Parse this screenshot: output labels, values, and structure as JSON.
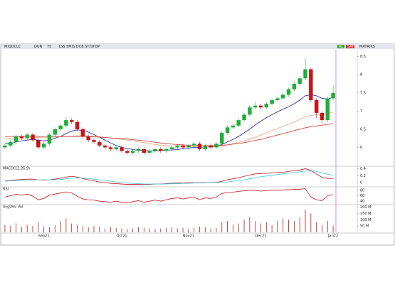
{
  "toolbar": {
    "symbol": "MIQDCLC",
    "period": "DUN",
    "zoom": "75",
    "tools": "1SS 5MIS DCB ST/STOP",
    "right1": "AL",
    "right2": "SAT",
    "right3": "MATRIKS"
  },
  "chart_data": [
    {
      "type": "candlestick",
      "categories": [
        null,
        null,
        null,
        null,
        null,
        null,
        null,
        "Sep21",
        null,
        null,
        null,
        null,
        null,
        null,
        null,
        null,
        null,
        null,
        null,
        null,
        null,
        "Oct21",
        null,
        null,
        null,
        null,
        null,
        null,
        null,
        null,
        null,
        null,
        null,
        "Nov21",
        null,
        null,
        null,
        null,
        null,
        null,
        null,
        null,
        null,
        null,
        null,
        null,
        "Dec21",
        null,
        null,
        null,
        null,
        null,
        null,
        null,
        null,
        null,
        null,
        null,
        null,
        "Jan22"
      ],
      "open": [
        6.0,
        6.05,
        6.15,
        6.3,
        6.25,
        6.35,
        6.2,
        6.0,
        6.1,
        6.35,
        6.5,
        6.6,
        6.75,
        6.7,
        6.5,
        6.3,
        6.2,
        6.15,
        6.05,
        6.0,
        5.95,
        6.0,
        5.9,
        5.85,
        5.9,
        5.95,
        5.85,
        5.9,
        5.95,
        5.9,
        5.95,
        6.0,
        6.05,
        6.0,
        6.05,
        6.1,
        5.95,
        6.05,
        6.0,
        6.1,
        6.4,
        6.55,
        6.6,
        6.75,
        6.9,
        7.1,
        7.15,
        7.1,
        7.2,
        7.3,
        7.35,
        7.45,
        7.6,
        7.75,
        7.9,
        8.15,
        7.3,
        6.95,
        6.75,
        7.35
      ],
      "high": [
        6.1,
        6.2,
        6.35,
        6.35,
        6.4,
        6.4,
        6.25,
        6.15,
        6.4,
        6.55,
        6.65,
        6.85,
        6.8,
        6.75,
        6.55,
        6.35,
        6.25,
        6.2,
        6.1,
        6.05,
        6.05,
        6.05,
        5.95,
        5.95,
        6.0,
        6.0,
        5.95,
        6.0,
        6.0,
        6.0,
        6.05,
        6.1,
        6.1,
        6.1,
        6.15,
        6.15,
        6.1,
        6.1,
        6.15,
        6.45,
        6.6,
        6.65,
        6.8,
        6.95,
        7.15,
        7.25,
        7.2,
        7.25,
        7.35,
        7.4,
        7.5,
        7.65,
        7.8,
        7.95,
        8.45,
        8.2,
        7.35,
        7.0,
        7.4,
        7.7
      ],
      "low": [
        5.95,
        6.0,
        6.1,
        6.2,
        6.2,
        6.15,
        5.95,
        5.95,
        6.05,
        6.3,
        6.45,
        6.55,
        6.65,
        6.45,
        6.25,
        6.15,
        6.1,
        6.0,
        5.95,
        5.9,
        5.9,
        5.85,
        5.8,
        5.8,
        5.85,
        5.8,
        5.8,
        5.85,
        5.85,
        5.85,
        5.9,
        5.95,
        5.95,
        5.95,
        6.0,
        5.9,
        5.9,
        5.95,
        5.95,
        6.05,
        6.35,
        6.5,
        6.55,
        6.7,
        6.85,
        7.05,
        7.05,
        7.05,
        7.15,
        7.25,
        7.3,
        7.4,
        7.55,
        7.7,
        7.85,
        7.25,
        6.8,
        6.65,
        6.7,
        7.3
      ],
      "close": [
        6.05,
        6.15,
        6.3,
        6.25,
        6.35,
        6.2,
        6.0,
        6.1,
        6.35,
        6.5,
        6.6,
        6.75,
        6.7,
        6.5,
        6.3,
        6.2,
        6.15,
        6.05,
        6.0,
        5.95,
        6.0,
        5.9,
        5.85,
        5.9,
        5.95,
        5.85,
        5.9,
        5.95,
        5.9,
        5.95,
        6.0,
        6.05,
        6.0,
        6.05,
        6.1,
        5.95,
        6.05,
        6.0,
        6.1,
        6.4,
        6.55,
        6.6,
        6.75,
        6.9,
        7.1,
        7.15,
        7.1,
        7.2,
        7.3,
        7.35,
        7.45,
        7.6,
        7.75,
        7.9,
        8.15,
        7.3,
        6.95,
        6.75,
        7.35,
        7.5
      ],
      "up_color": "#1fae3a",
      "down_color": "#c8141b",
      "series": [
        {
          "color": "#1a1aa6",
          "values": [
            6.1,
            6.1,
            6.15,
            6.18,
            6.2,
            6.22,
            6.2,
            6.18,
            6.2,
            6.25,
            6.3,
            6.38,
            6.45,
            6.48,
            6.47,
            6.42,
            6.35,
            6.28,
            6.2,
            6.12,
            6.05,
            6.0,
            5.97,
            5.94,
            5.92,
            5.91,
            5.9,
            5.9,
            5.91,
            5.92,
            5.93,
            5.94,
            5.96,
            5.98,
            6.0,
            6.0,
            6.01,
            6.02,
            6.03,
            6.08,
            6.15,
            6.22,
            6.3,
            6.4,
            6.5,
            6.62,
            6.72,
            6.82,
            6.9,
            6.98,
            7.05,
            7.12,
            7.2,
            7.3,
            7.42,
            7.45,
            7.42,
            7.35,
            7.33,
            7.38
          ]
        },
        {
          "color": "#f0a080",
          "values": [
            6.25,
            6.25,
            6.26,
            6.26,
            6.27,
            6.27,
            6.27,
            6.27,
            6.28,
            6.28,
            6.29,
            6.3,
            6.31,
            6.32,
            6.32,
            6.32,
            6.31,
            6.3,
            6.28,
            6.26,
            6.24,
            6.22,
            6.2,
            6.18,
            6.15,
            6.13,
            6.1,
            6.08,
            6.06,
            6.05,
            6.04,
            6.03,
            6.02,
            6.02,
            6.02,
            6.01,
            6.01,
            6.01,
            6.02,
            6.04,
            6.06,
            6.1,
            6.14,
            6.18,
            6.23,
            6.28,
            6.34,
            6.4,
            6.46,
            6.52,
            6.58,
            6.64,
            6.7,
            6.77,
            6.84,
            6.88,
            6.9,
            6.91,
            6.93,
            6.97
          ]
        },
        {
          "color": "#c0392b",
          "values": [
            6.3,
            6.3,
            6.3,
            6.3,
            6.3,
            6.3,
            6.3,
            6.3,
            6.3,
            6.3,
            6.3,
            6.3,
            6.3,
            6.3,
            6.3,
            6.3,
            6.29,
            6.28,
            6.27,
            6.26,
            6.25,
            6.24,
            6.23,
            6.21,
            6.2,
            6.18,
            6.16,
            6.14,
            6.12,
            6.1,
            6.09,
            6.08,
            6.07,
            6.06,
            6.06,
            6.05,
            6.05,
            6.05,
            6.05,
            6.06,
            6.07,
            6.09,
            6.11,
            6.13,
            6.16,
            6.19,
            6.22,
            6.26,
            6.3,
            6.34,
            6.38,
            6.42,
            6.46,
            6.5,
            6.54,
            6.57,
            6.59,
            6.61,
            6.63,
            6.66
          ]
        }
      ],
      "ylim": [
        5.5,
        8.65
      ],
      "yticks": [
        6,
        6.5,
        7,
        7.5,
        8,
        8.5
      ]
    },
    {
      "type": "line",
      "title": "MACD(12,26,9)",
      "series": [
        {
          "color": "#c8141b",
          "values": [
            0.05,
            0.06,
            0.08,
            0.09,
            0.1,
            0.1,
            0.08,
            0.07,
            0.08,
            0.1,
            0.13,
            0.16,
            0.18,
            0.16,
            0.12,
            0.08,
            0.05,
            0.02,
            0,
            -0.02,
            -0.03,
            -0.04,
            -0.05,
            -0.05,
            -0.05,
            -0.05,
            -0.05,
            -0.04,
            -0.04,
            -0.03,
            -0.02,
            -0.01,
            -0.01,
            0,
            0,
            0,
            0,
            0,
            0.01,
            0.04,
            0.08,
            0.11,
            0.14,
            0.18,
            0.22,
            0.25,
            0.26,
            0.27,
            0.28,
            0.29,
            0.3,
            0.32,
            0.34,
            0.36,
            0.4,
            0.35,
            0.25,
            0.15,
            0.12,
            0.12
          ]
        },
        {
          "color": "#3cc8d8",
          "values": [
            0.04,
            0.05,
            0.05,
            0.06,
            0.07,
            0.08,
            0.08,
            0.08,
            0.08,
            0.08,
            0.09,
            0.11,
            0.13,
            0.14,
            0.13,
            0.12,
            0.1,
            0.08,
            0.06,
            0.04,
            0.02,
            0,
            -0.01,
            -0.02,
            -0.03,
            -0.04,
            -0.04,
            -0.04,
            -0.04,
            -0.04,
            -0.03,
            -0.03,
            -0.02,
            -0.02,
            -0.01,
            -0.01,
            -0.01,
            0,
            0,
            0.01,
            0.02,
            0.04,
            0.06,
            0.08,
            0.11,
            0.14,
            0.17,
            0.19,
            0.21,
            0.23,
            0.25,
            0.27,
            0.29,
            0.31,
            0.33,
            0.34,
            0.32,
            0.28,
            0.24,
            0.21
          ]
        }
      ],
      "ylim": [
        -0.1,
        0.45
      ],
      "yticks": [
        0,
        0.2,
        0.4
      ]
    },
    {
      "type": "line",
      "title": "RSI",
      "series": [
        {
          "color": "#c8141b",
          "values": [
            55,
            60,
            65,
            62,
            66,
            58,
            45,
            50,
            62,
            66,
            70,
            74,
            70,
            58,
            48,
            45,
            44,
            40,
            38,
            36,
            40,
            36,
            34,
            38,
            42,
            36,
            40,
            44,
            40,
            45,
            50,
            52,
            48,
            52,
            55,
            45,
            52,
            50,
            55,
            68,
            72,
            73,
            76,
            78,
            80,
            80,
            77,
            79,
            80,
            80,
            81,
            82,
            83,
            84,
            86,
            55,
            45,
            42,
            60,
            64
          ]
        }
      ],
      "ylim": [
        30,
        90
      ],
      "yticks": [
        40,
        60,
        80
      ]
    },
    {
      "type": "bar",
      "title": "AvgDev Vol",
      "color": "#b02020",
      "values": [
        60,
        50,
        70,
        40,
        60,
        50,
        80,
        45,
        40,
        55,
        90,
        110,
        70,
        60,
        50,
        40,
        50,
        45,
        30,
        40,
        35,
        30,
        25,
        30,
        40,
        35,
        30,
        25,
        30,
        35,
        40,
        30,
        35,
        30,
        35,
        45,
        40,
        30,
        35,
        80,
        90,
        60,
        70,
        100,
        120,
        90,
        70,
        80,
        60,
        90,
        110,
        100,
        90,
        120,
        180,
        150,
        80,
        60,
        90,
        50
      ],
      "ylim": [
        0,
        215
      ],
      "yticks": [
        {
          "value": 50,
          "label": "50 M"
        },
        {
          "value": 100,
          "label": "100 M"
        },
        {
          "value": 150,
          "label": "150 M"
        },
        {
          "value": 200,
          "label": "200 M"
        }
      ]
    }
  ]
}
